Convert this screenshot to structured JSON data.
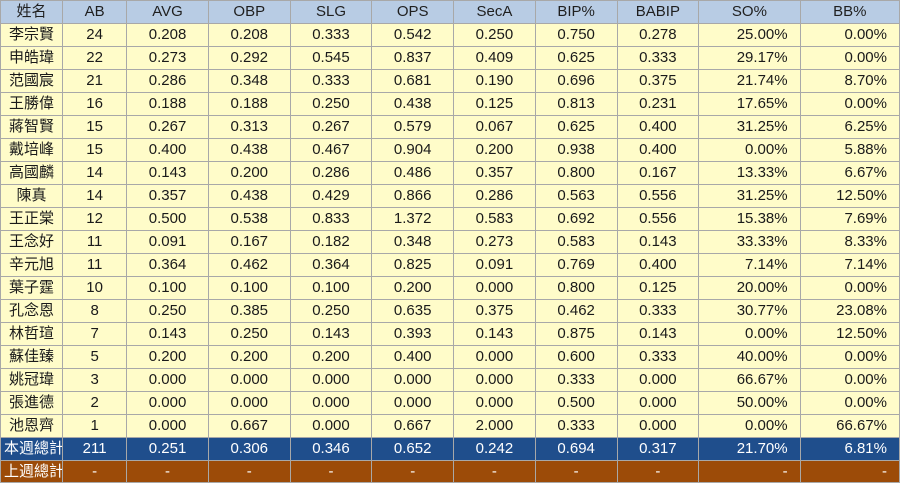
{
  "table": {
    "columns": [
      "姓名",
      "AB",
      "AVG",
      "OBP",
      "SLG",
      "OPS",
      "SecA",
      "BIP%",
      "BABIP",
      "SO%",
      "BB%"
    ],
    "rows": [
      [
        "李宗賢",
        "24",
        "0.208",
        "0.208",
        "0.333",
        "0.542",
        "0.250",
        "0.750",
        "0.278",
        "25.00%",
        "0.00%"
      ],
      [
        "申皓瑋",
        "22",
        "0.273",
        "0.292",
        "0.545",
        "0.837",
        "0.409",
        "0.625",
        "0.333",
        "29.17%",
        "0.00%"
      ],
      [
        "范國宸",
        "21",
        "0.286",
        "0.348",
        "0.333",
        "0.681",
        "0.190",
        "0.696",
        "0.375",
        "21.74%",
        "8.70%"
      ],
      [
        "王勝偉",
        "16",
        "0.188",
        "0.188",
        "0.250",
        "0.438",
        "0.125",
        "0.813",
        "0.231",
        "17.65%",
        "0.00%"
      ],
      [
        "蔣智賢",
        "15",
        "0.267",
        "0.313",
        "0.267",
        "0.579",
        "0.067",
        "0.625",
        "0.400",
        "31.25%",
        "6.25%"
      ],
      [
        "戴培峰",
        "15",
        "0.400",
        "0.438",
        "0.467",
        "0.904",
        "0.200",
        "0.938",
        "0.400",
        "0.00%",
        "5.88%"
      ],
      [
        "高國麟",
        "14",
        "0.143",
        "0.200",
        "0.286",
        "0.486",
        "0.357",
        "0.800",
        "0.167",
        "13.33%",
        "6.67%"
      ],
      [
        "陳真",
        "14",
        "0.357",
        "0.438",
        "0.429",
        "0.866",
        "0.286",
        "0.563",
        "0.556",
        "31.25%",
        "12.50%"
      ],
      [
        "王正棠",
        "12",
        "0.500",
        "0.538",
        "0.833",
        "1.372",
        "0.583",
        "0.692",
        "0.556",
        "15.38%",
        "7.69%"
      ],
      [
        "王念好",
        "11",
        "0.091",
        "0.167",
        "0.182",
        "0.348",
        "0.273",
        "0.583",
        "0.143",
        "33.33%",
        "8.33%"
      ],
      [
        "辛元旭",
        "11",
        "0.364",
        "0.462",
        "0.364",
        "0.825",
        "0.091",
        "0.769",
        "0.400",
        "7.14%",
        "7.14%"
      ],
      [
        "葉子霆",
        "10",
        "0.100",
        "0.100",
        "0.100",
        "0.200",
        "0.000",
        "0.800",
        "0.125",
        "20.00%",
        "0.00%"
      ],
      [
        "孔念恩",
        "8",
        "0.250",
        "0.385",
        "0.250",
        "0.635",
        "0.375",
        "0.462",
        "0.333",
        "30.77%",
        "23.08%"
      ],
      [
        "林哲瑄",
        "7",
        "0.143",
        "0.250",
        "0.143",
        "0.393",
        "0.143",
        "0.875",
        "0.143",
        "0.00%",
        "12.50%"
      ],
      [
        "蘇佳臻",
        "5",
        "0.200",
        "0.200",
        "0.200",
        "0.400",
        "0.000",
        "0.600",
        "0.333",
        "40.00%",
        "0.00%"
      ],
      [
        "姚冠瑋",
        "3",
        "0.000",
        "0.000",
        "0.000",
        "0.000",
        "0.000",
        "0.333",
        "0.000",
        "66.67%",
        "0.00%"
      ],
      [
        "張進德",
        "2",
        "0.000",
        "0.000",
        "0.000",
        "0.000",
        "0.000",
        "0.500",
        "0.000",
        "50.00%",
        "0.00%"
      ],
      [
        "池恩齊",
        "1",
        "0.000",
        "0.667",
        "0.000",
        "0.667",
        "2.000",
        "0.333",
        "0.000",
        "0.00%",
        "66.67%"
      ]
    ],
    "week_total": [
      "本週總計",
      "211",
      "0.251",
      "0.306",
      "0.346",
      "0.652",
      "0.242",
      "0.694",
      "0.317",
      "21.70%",
      "6.81%"
    ],
    "last_week_total": [
      "上週總計",
      "-",
      "-",
      "-",
      "-",
      "-",
      "-",
      "-",
      "-",
      "-",
      "-"
    ]
  },
  "colors": {
    "header_bg": "#b8cce4",
    "row_bg": "#fffcc9",
    "week_total_bg": "#1f4e8c",
    "last_week_bg": "#9c4b08",
    "border": "#a8a8a8"
  }
}
